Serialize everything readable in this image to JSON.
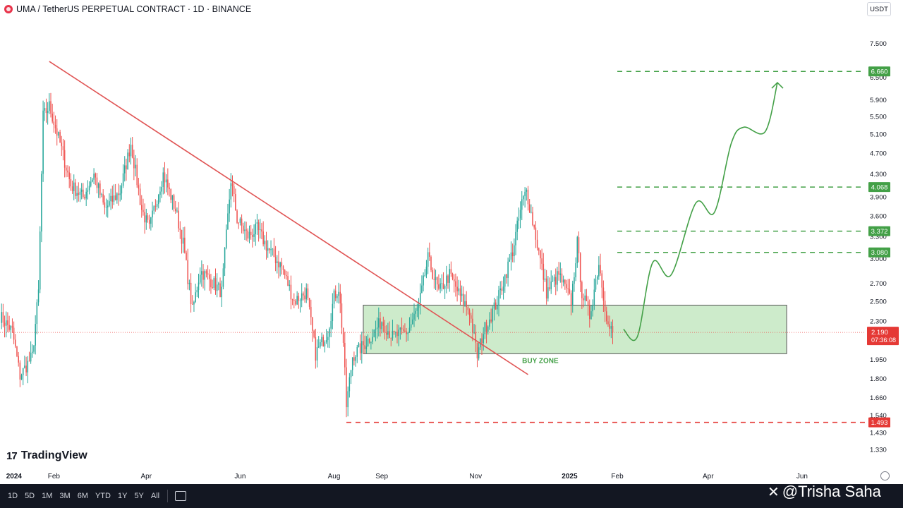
{
  "header": {
    "symbol_title": "UMA / TetherUS PERPETUAL CONTRACT · 1D · BINANCE",
    "currency": "USDT"
  },
  "branding": {
    "logo_mark": "17",
    "name": "TradingView"
  },
  "toolbar": {
    "timeframes": [
      "1D",
      "5D",
      "1M",
      "3M",
      "6M",
      "YTD",
      "1Y",
      "5Y",
      "All"
    ]
  },
  "watermark": "@Trisha Saha",
  "colors": {
    "up": "#26a69a",
    "down": "#ef5350",
    "green": "#43a047",
    "red": "#e53935",
    "zone_fill": "#cdebcb",
    "trendline": "#e05555",
    "toolbar_bg": "#131722"
  },
  "chart_data": {
    "type": "candlestick",
    "y_scale": "log",
    "ylim": [
      1.26,
      8.3
    ],
    "y_ticks": [
      "7.500",
      "6.500",
      "5.900",
      "5.500",
      "5.100",
      "4.700",
      "4.300",
      "3.900",
      "3.600",
      "3.300",
      "3.000",
      "2.700",
      "2.500",
      "2.300",
      "1.950",
      "1.800",
      "1.660",
      "1.540",
      "1.430",
      "1.330"
    ],
    "x_labels": [
      {
        "label": "2024",
        "date": "2024-01-01",
        "bold": true
      },
      {
        "label": "Feb",
        "date": "2024-02-01"
      },
      {
        "label": "Apr",
        "date": "2024-04-01"
      },
      {
        "label": "Jun",
        "date": "2024-06-01"
      },
      {
        "label": "Aug",
        "date": "2024-08-01"
      },
      {
        "label": "Sep",
        "date": "2024-09-01"
      },
      {
        "label": "Nov",
        "date": "2024-11-01"
      },
      {
        "label": "2025",
        "date": "2025-01-01",
        "bold": true
      },
      {
        "label": "Feb",
        "date": "2025-02-01"
      },
      {
        "label": "Apr",
        "date": "2025-04-01"
      },
      {
        "label": "Jun",
        "date": "2025-06-01"
      }
    ],
    "x_range": [
      "2023-12-28",
      "2025-07-10"
    ],
    "price_path": [
      [
        "2023-12-28",
        2.35
      ],
      [
        "2024-01-05",
        2.2
      ],
      [
        "2024-01-10",
        1.82
      ],
      [
        "2024-01-18",
        1.98
      ],
      [
        "2024-01-22",
        2.6
      ],
      [
        "2024-01-25",
        5.5
      ],
      [
        "2024-01-29",
        5.75
      ],
      [
        "2024-02-05",
        4.9
      ],
      [
        "2024-02-12",
        4.1
      ],
      [
        "2024-02-20",
        3.9
      ],
      [
        "2024-02-27",
        4.3
      ],
      [
        "2024-03-05",
        3.7
      ],
      [
        "2024-03-15",
        4.0
      ],
      [
        "2024-03-22",
        4.9
      ],
      [
        "2024-03-29",
        3.7
      ],
      [
        "2024-04-03",
        3.4
      ],
      [
        "2024-04-08",
        3.9
      ],
      [
        "2024-04-12",
        4.3
      ],
      [
        "2024-04-20",
        3.7
      ],
      [
        "2024-04-25",
        3.2
      ],
      [
        "2024-05-01",
        2.4
      ],
      [
        "2024-05-06",
        2.85
      ],
      [
        "2024-05-12",
        2.75
      ],
      [
        "2024-05-20",
        2.6
      ],
      [
        "2024-05-26",
        4.2
      ],
      [
        "2024-05-30",
        3.55
      ],
      [
        "2024-06-06",
        3.3
      ],
      [
        "2024-06-12",
        3.4
      ],
      [
        "2024-06-20",
        3.1
      ],
      [
        "2024-06-28",
        2.9
      ],
      [
        "2024-07-06",
        2.5
      ],
      [
        "2024-07-14",
        2.6
      ],
      [
        "2024-07-20",
        2.0
      ],
      [
        "2024-07-28",
        2.2
      ],
      [
        "2024-08-01",
        2.55
      ],
      [
        "2024-08-04",
        2.65
      ],
      [
        "2024-08-07",
        2.1
      ],
      [
        "2024-08-09",
        1.6
      ],
      [
        "2024-08-13",
        1.98
      ],
      [
        "2024-08-22",
        2.1
      ],
      [
        "2024-09-01",
        2.3
      ],
      [
        "2024-09-08",
        2.15
      ],
      [
        "2024-09-18",
        2.2
      ],
      [
        "2024-09-25",
        2.45
      ],
      [
        "2024-10-01",
        3.0
      ],
      [
        "2024-10-08",
        2.6
      ],
      [
        "2024-10-15",
        2.8
      ],
      [
        "2024-10-22",
        2.55
      ],
      [
        "2024-10-28",
        2.4
      ],
      [
        "2024-11-02",
        1.98
      ],
      [
        "2024-11-06",
        2.2
      ],
      [
        "2024-11-15",
        2.5
      ],
      [
        "2024-11-25",
        3.1
      ],
      [
        "2024-12-01",
        3.8
      ],
      [
        "2024-12-04",
        4.0
      ],
      [
        "2024-12-10",
        3.3
      ],
      [
        "2024-12-17",
        2.6
      ],
      [
        "2024-12-25",
        2.8
      ],
      [
        "2025-01-02",
        2.5
      ],
      [
        "2025-01-06",
        3.2
      ],
      [
        "2025-01-09",
        2.6
      ],
      [
        "2025-01-14",
        2.35
      ],
      [
        "2025-01-20",
        2.95
      ],
      [
        "2025-01-26",
        2.25
      ],
      [
        "2025-01-29",
        2.19
      ]
    ],
    "current_price": {
      "value": 2.19,
      "label": "2.190",
      "countdown": "07:36:08"
    },
    "price_levels": [
      {
        "value": 6.66,
        "label": "6.660",
        "color": "green",
        "start": "2025-02-01"
      },
      {
        "value": 4.068,
        "label": "4.068",
        "color": "green",
        "start": "2025-02-01"
      },
      {
        "value": 3.372,
        "label": "3.372",
        "color": "green",
        "start": "2025-02-01"
      },
      {
        "value": 3.08,
        "label": "3.080",
        "color": "green",
        "start": "2025-02-01"
      },
      {
        "value": 1.493,
        "label": "1.493",
        "color": "red",
        "start": "2024-08-09"
      }
    ],
    "buy_zone": {
      "label": "BUY ZONE",
      "x0": "2024-08-20",
      "x1": "2025-05-22",
      "y_top": 2.46,
      "y_bottom": 2.0
    },
    "trendline": {
      "from": [
        "2024-01-29",
        6.95
      ],
      "to": [
        "2024-12-05",
        1.83
      ]
    },
    "projection_path": [
      [
        "2025-02-05",
        2.22
      ],
      [
        "2025-02-14",
        2.15
      ],
      [
        "2025-02-24",
        2.95
      ],
      [
        "2025-03-08",
        2.8
      ],
      [
        "2025-03-24",
        3.8
      ],
      [
        "2025-04-05",
        3.65
      ],
      [
        "2025-04-16",
        4.9
      ],
      [
        "2025-04-24",
        5.25
      ],
      [
        "2025-05-08",
        5.15
      ],
      [
        "2025-05-16",
        6.35
      ]
    ]
  }
}
